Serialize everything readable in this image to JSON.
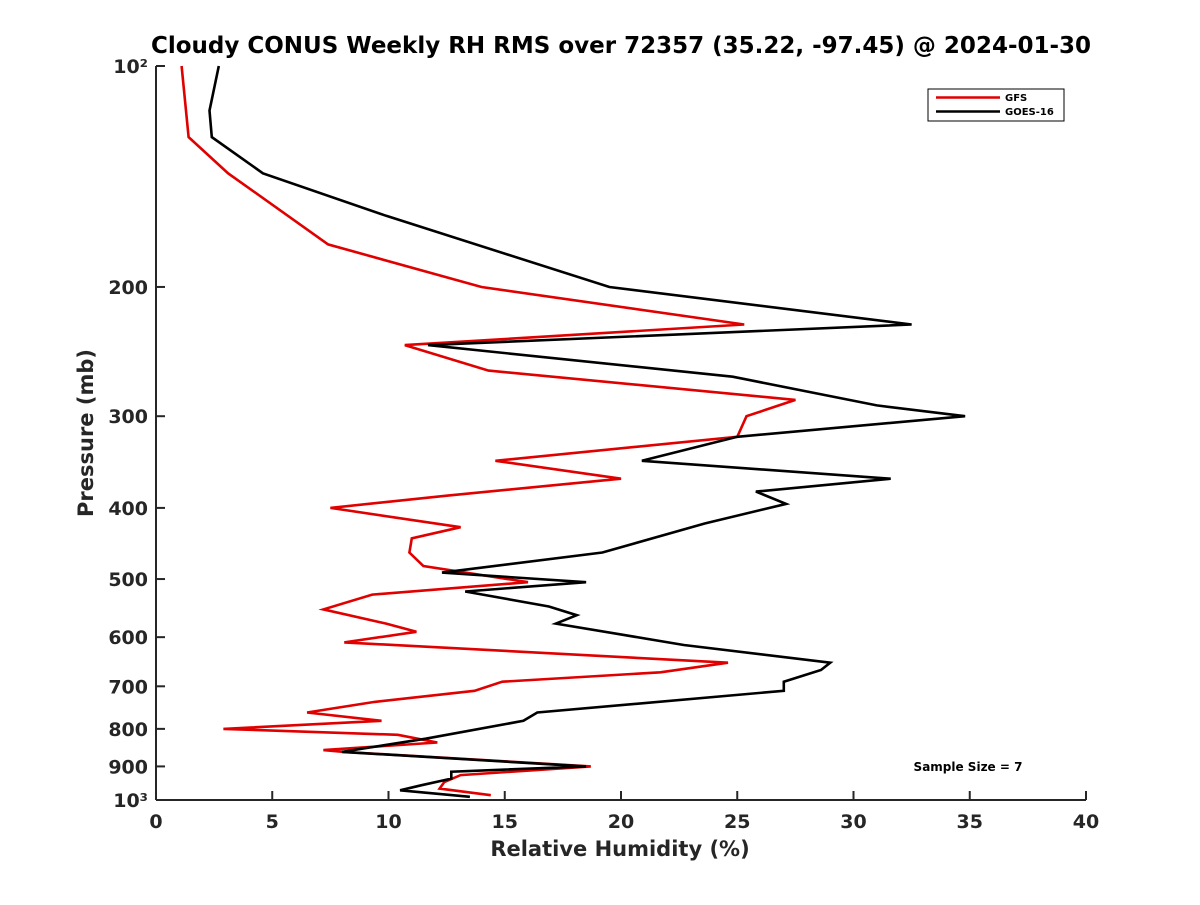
{
  "chart_data": {
    "type": "line",
    "title": "Cloudy CONUS Weekly RH RMS over 72357 (35.22, -97.45) @ 2024-01-30",
    "xlabel": "Relative Humidity (%)",
    "ylabel": "Pressure (mb)",
    "xlim": [
      0,
      40
    ],
    "ylim": [
      100,
      1000
    ],
    "yscale": "log",
    "y_reversed": true,
    "x_ticks": [
      0,
      5,
      10,
      15,
      20,
      25,
      30,
      35,
      40
    ],
    "x_tick_labels": [
      "0",
      "5",
      "10",
      "15",
      "20",
      "25",
      "30",
      "35",
      "40"
    ],
    "y_ticks": [
      100,
      200,
      300,
      400,
      500,
      600,
      700,
      800,
      900,
      1000
    ],
    "y_tick_labels": [
      "10²",
      "200",
      "300",
      "400",
      "500",
      "600",
      "700",
      "800",
      "900",
      "10³"
    ],
    "grid": false,
    "legend_position": "top-right",
    "annotation": "Sample Size = 7",
    "series": [
      {
        "name": "GFS",
        "color": "#e00000",
        "points": [
          [
            1.1,
            100
          ],
          [
            1.4,
            125
          ],
          [
            3.1,
            140
          ],
          [
            7.4,
            175
          ],
          [
            14,
            200
          ],
          [
            25.3,
            225
          ],
          [
            10.7,
            240
          ],
          [
            14.3,
            260
          ],
          [
            27.5,
            285
          ],
          [
            25.4,
            300
          ],
          [
            25.0,
            320
          ],
          [
            14.6,
            345
          ],
          [
            20.0,
            365
          ],
          [
            12.5,
            385
          ],
          [
            7.5,
            400
          ],
          [
            13.1,
            425
          ],
          [
            11.0,
            440
          ],
          [
            10.9,
            460
          ],
          [
            11.5,
            480
          ],
          [
            16.0,
            505
          ],
          [
            9.3,
            525
          ],
          [
            7.2,
            550
          ],
          [
            9.9,
            575
          ],
          [
            11.2,
            590
          ],
          [
            8.1,
            610
          ],
          [
            24.6,
            650
          ],
          [
            21.7,
            670
          ],
          [
            14.9,
            690
          ],
          [
            13.7,
            710
          ],
          [
            9.4,
            735
          ],
          [
            6.5,
            760
          ],
          [
            9.7,
            780
          ],
          [
            2.9,
            800
          ],
          [
            10.4,
            815
          ],
          [
            12.1,
            835
          ],
          [
            7.2,
            855
          ],
          [
            8.1,
            860
          ],
          [
            18.7,
            900
          ],
          [
            13.1,
            925
          ],
          [
            12.4,
            945
          ],
          [
            12.2,
            965
          ],
          [
            14.4,
            985
          ]
        ]
      },
      {
        "name": "GOES-16",
        "color": "#000000",
        "points": [
          [
            2.7,
            100
          ],
          [
            2.3,
            115
          ],
          [
            2.4,
            125
          ],
          [
            4.6,
            140
          ],
          [
            9.9,
            160
          ],
          [
            19.5,
            200
          ],
          [
            32.5,
            225
          ],
          [
            11.7,
            240
          ],
          [
            24.8,
            265
          ],
          [
            31.0,
            290
          ],
          [
            34.8,
            300
          ],
          [
            25.0,
            320
          ],
          [
            20.9,
            345
          ],
          [
            31.6,
            365
          ],
          [
            25.8,
            380
          ],
          [
            27.1,
            395
          ],
          [
            23.6,
            420
          ],
          [
            19.2,
            460
          ],
          [
            12.3,
            490
          ],
          [
            18.5,
            505
          ],
          [
            13.3,
            520
          ],
          [
            16.9,
            545
          ],
          [
            18.1,
            560
          ],
          [
            17.2,
            575
          ],
          [
            22.7,
            615
          ],
          [
            29.0,
            650
          ],
          [
            28.6,
            665
          ],
          [
            27.0,
            690
          ],
          [
            27.0,
            710
          ],
          [
            16.4,
            760
          ],
          [
            15.8,
            780
          ],
          [
            11.6,
            825
          ],
          [
            8.0,
            860
          ],
          [
            18.5,
            900
          ],
          [
            12.7,
            915
          ],
          [
            12.7,
            935
          ],
          [
            11.4,
            955
          ],
          [
            10.5,
            970
          ],
          [
            13.5,
            990
          ]
        ]
      }
    ]
  }
}
